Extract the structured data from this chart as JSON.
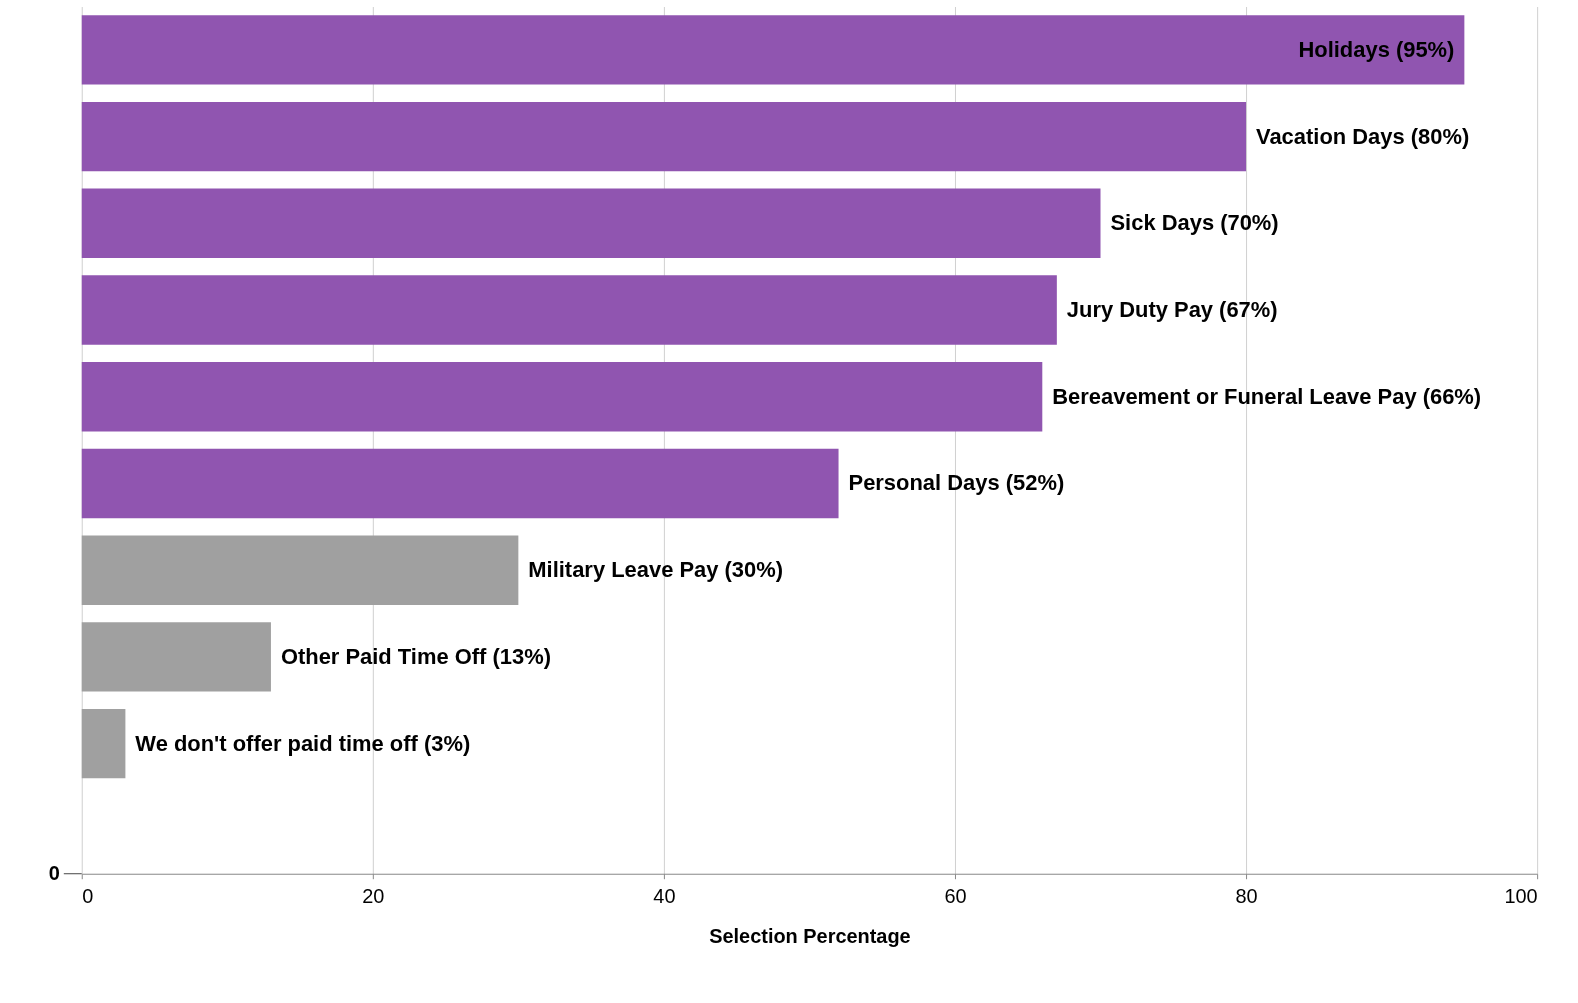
{
  "chart_data": {
    "type": "bar",
    "orientation": "horizontal",
    "categories": [
      null,
      null,
      null,
      null,
      null,
      null,
      null,
      null,
      null
    ],
    "values": [
      95,
      80,
      70,
      67,
      66,
      52,
      30,
      13,
      3
    ],
    "colors": [
      "#9055b0",
      "#9055b0",
      "#9055b0",
      "#9055b0",
      "#9055b0",
      "#9055b0",
      "#a0a0a0",
      "#a0a0a0",
      "#a0a0a0"
    ],
    "value_labels": [
      "Holidays (95%)",
      "Vacation Days (80%)",
      "Sick Days (70%)",
      "Jury Duty Pay (67%)",
      "Bereavement or Funeral Leave Pay (66%)",
      "Personal Days (52%)",
      "Military Leave Pay (30%)",
      "Other Paid Time Off (13%)",
      "We don't offer paid time off (3%)"
    ],
    "xlim": [
      0,
      100
    ],
    "xticks": [
      0,
      20,
      40,
      60,
      80,
      100
    ],
    "xlabel": "Selection Percentage",
    "grid": "x",
    "annotations": [
      "0"
    ]
  }
}
